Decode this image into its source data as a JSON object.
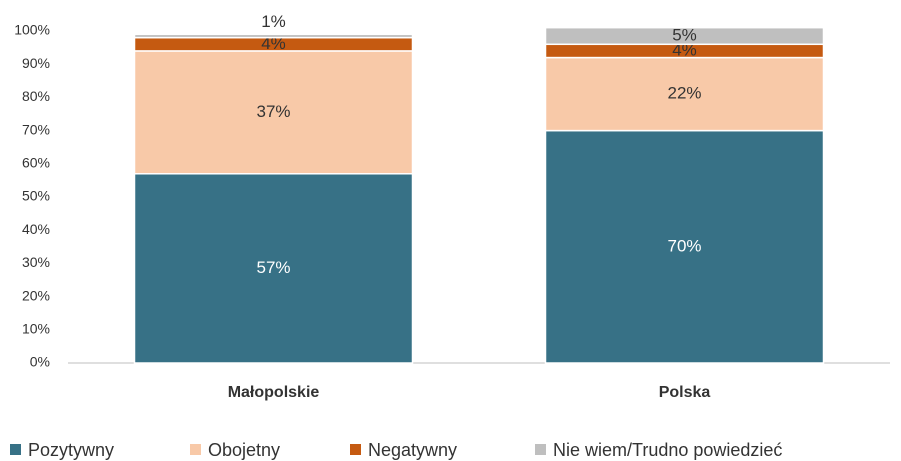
{
  "chart_data": {
    "type": "stacked_bar",
    "categories": [
      "Małopolskie",
      "Polska"
    ],
    "series": [
      {
        "name": "Pozytywny",
        "color": "#377186",
        "values": [
          57,
          70
        ],
        "value_labels": [
          "57%",
          "70%"
        ]
      },
      {
        "name": "Obojetny",
        "color": "#f8c9a8",
        "values": [
          37,
          22
        ],
        "value_labels": [
          "37%",
          "22%"
        ]
      },
      {
        "name": "Negatywny",
        "color": "#c55a11",
        "values": [
          4,
          4
        ],
        "value_labels": [
          "4%",
          "4%"
        ]
      },
      {
        "name": "Nie wiem/Trudno powiedzieć",
        "color": "#bfbfbf",
        "values": [
          1,
          5
        ],
        "value_labels": [
          "1%",
          "5%"
        ]
      }
    ],
    "ylim": [
      0,
      100
    ],
    "yticks": [
      {
        "value": 0,
        "label": "0%"
      },
      {
        "value": 10,
        "label": "10%"
      },
      {
        "value": 20,
        "label": "20%"
      },
      {
        "value": 30,
        "label": "30%"
      },
      {
        "value": 40,
        "label": "40%"
      },
      {
        "value": 50,
        "label": "50%"
      },
      {
        "value": 60,
        "label": "60%"
      },
      {
        "value": 70,
        "label": "70%"
      },
      {
        "value": 80,
        "label": "80%"
      },
      {
        "value": 90,
        "label": "90%"
      },
      {
        "value": 100,
        "label": "100%"
      }
    ],
    "legend": "bottom"
  }
}
